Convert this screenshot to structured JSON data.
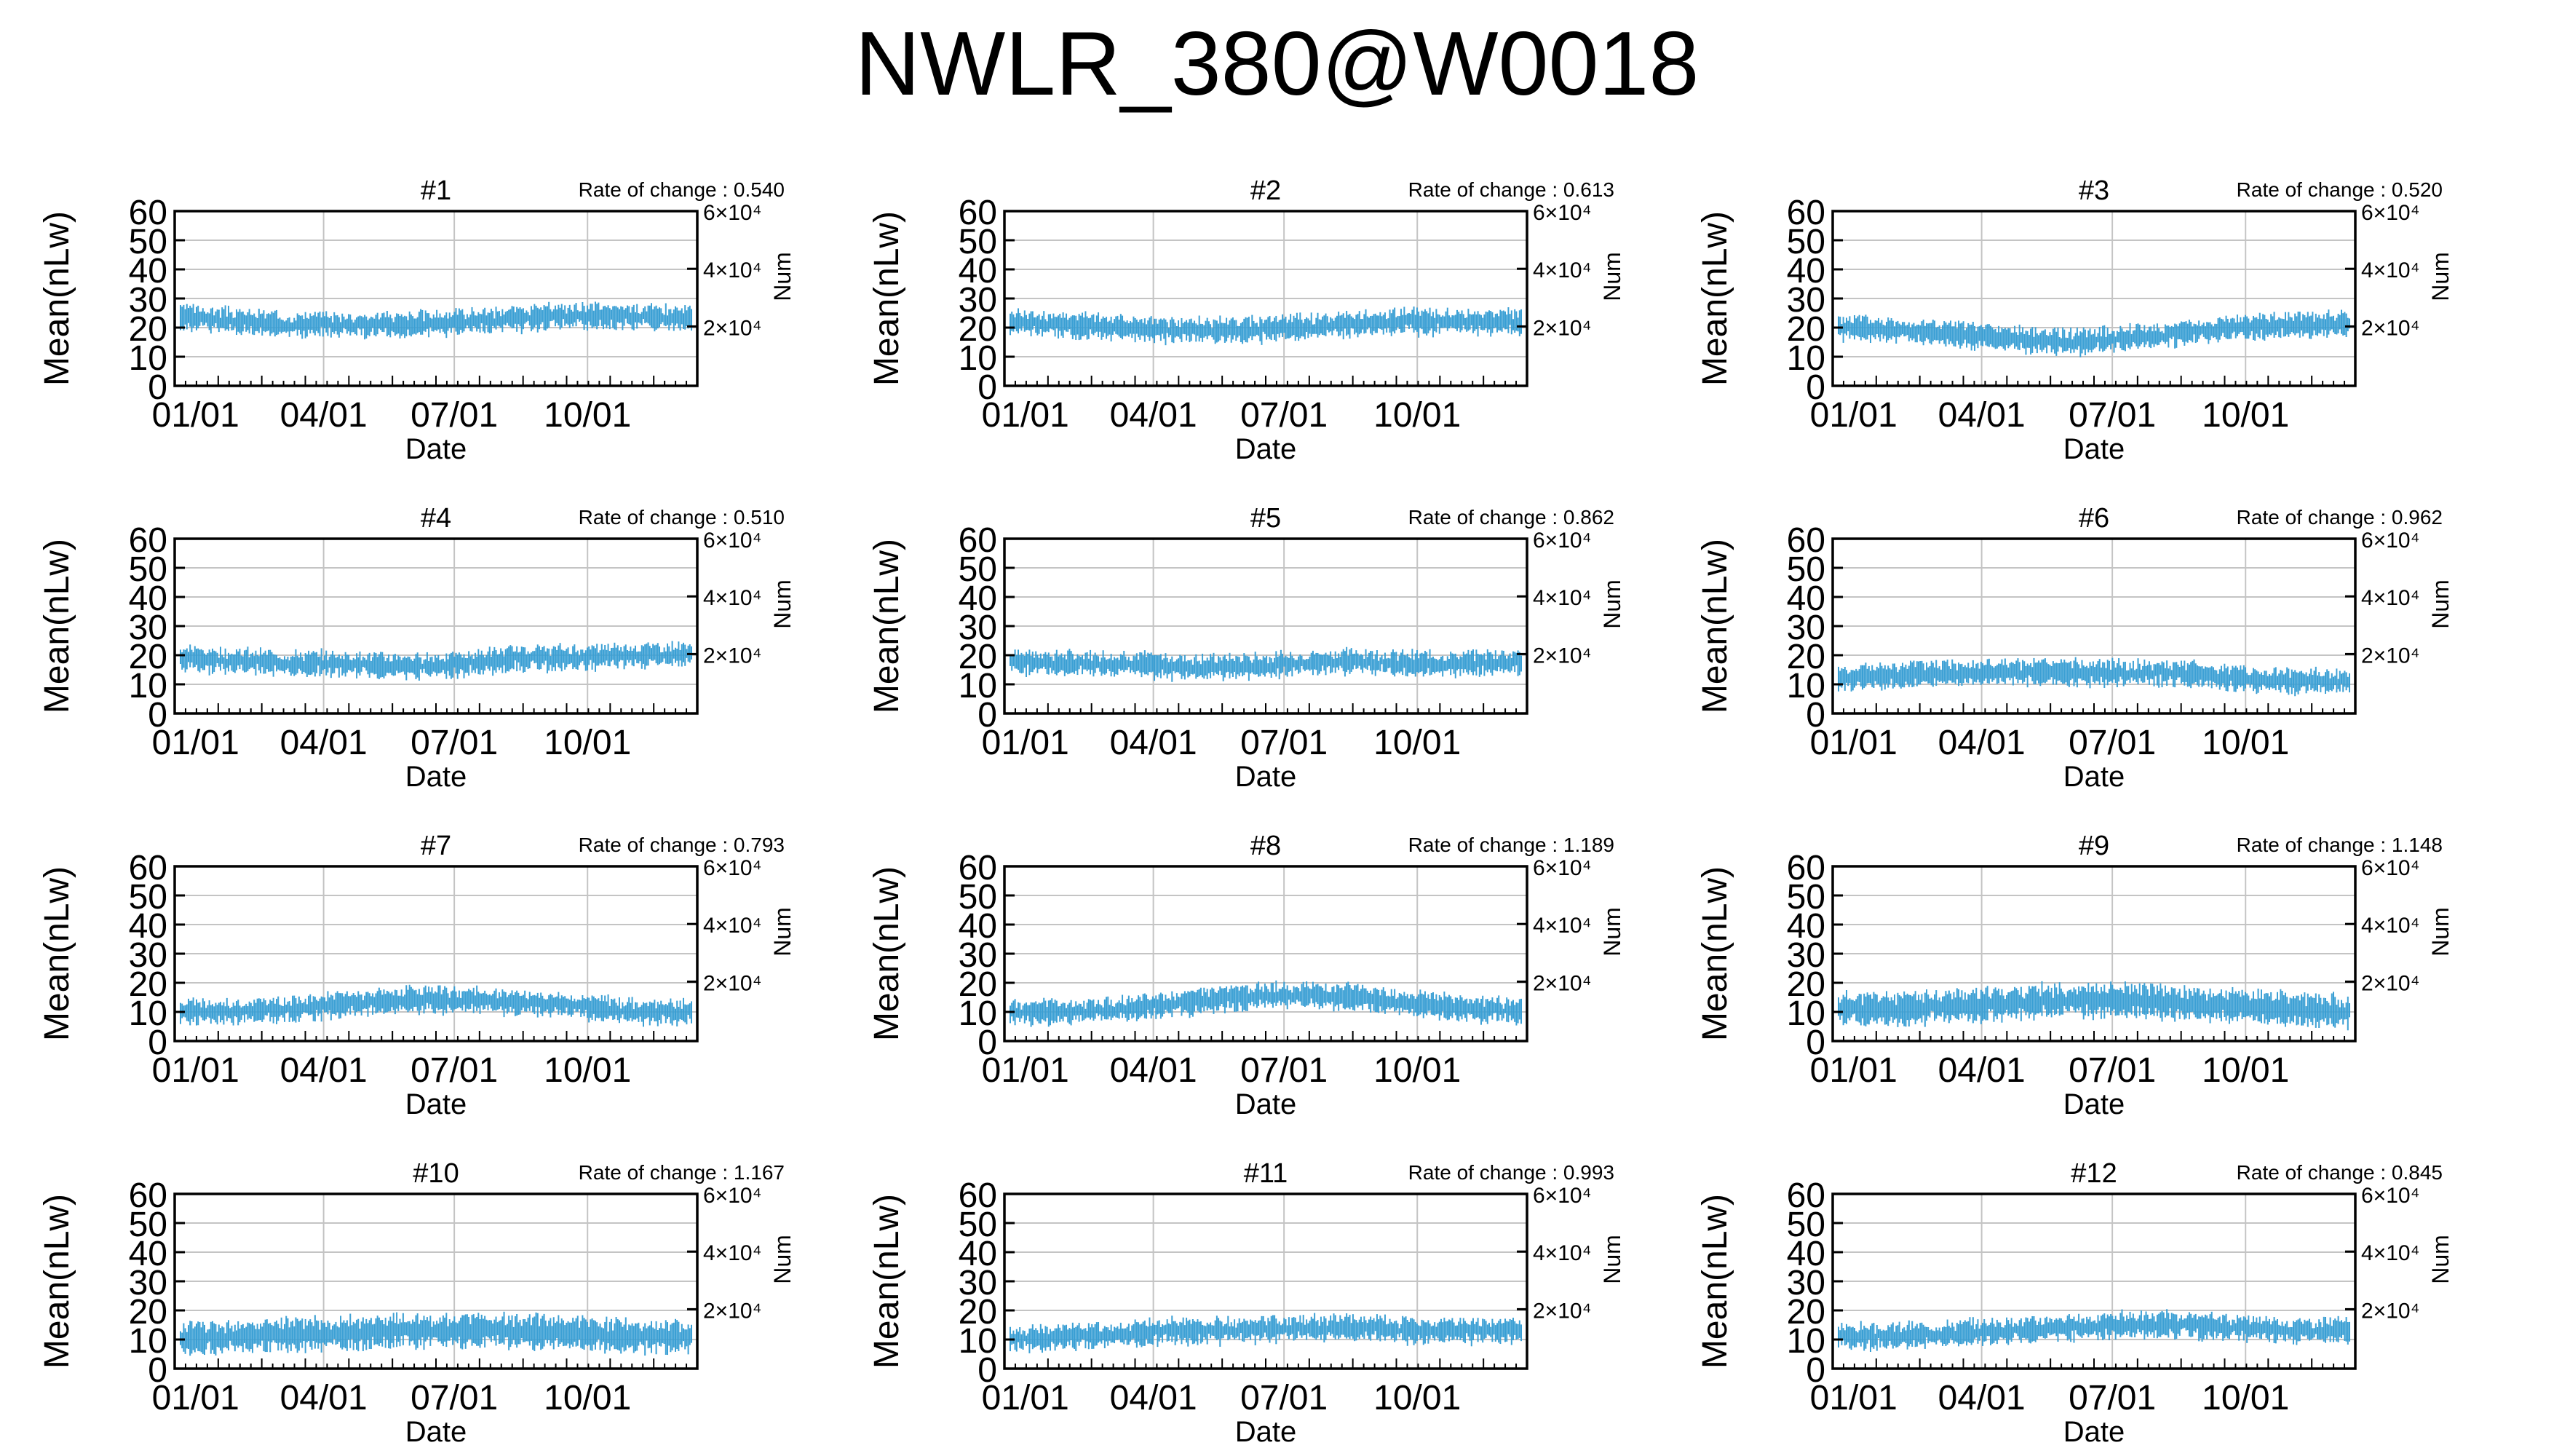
{
  "title": "NWLR_380@W0018",
  "colors": {
    "series": "#3a9fd4",
    "grid": "#c4c4c4",
    "axis": "#000000"
  },
  "chart_data": [
    {
      "type": "line",
      "title": "#1",
      "rate_label": "Rate of change : 0.540",
      "xlabel": "Date",
      "ylabel": "Mean(nLw)",
      "y2label": "Num",
      "ylim": [
        0,
        60
      ],
      "yticks": [
        "0",
        "10",
        "20",
        "30",
        "40",
        "50",
        "60"
      ],
      "y2ticks": [
        "2×10⁴",
        "4×10⁴",
        "6×10⁴"
      ],
      "xticks": [
        "01/01",
        "04/01",
        "07/01",
        "10/01"
      ],
      "grid": true,
      "series": [
        {
          "baseline": [
            24,
            22,
            21,
            21,
            21,
            22,
            23,
            24,
            24,
            23
          ],
          "spread": 3
        }
      ]
    },
    {
      "type": "line",
      "title": "#2",
      "rate_label": "Rate of change : 0.613",
      "xlabel": "Date",
      "ylabel": "Mean(nLw)",
      "y2label": "Num",
      "ylim": [
        0,
        60
      ],
      "yticks": [
        "0",
        "10",
        "20",
        "30",
        "40",
        "50",
        "60"
      ],
      "y2ticks": [
        "2×10⁴",
        "4×10⁴",
        "6×10⁴"
      ],
      "xticks": [
        "01/01",
        "04/01",
        "07/01",
        "10/01"
      ],
      "grid": true,
      "series": [
        {
          "baseline": [
            22,
            21,
            20,
            19,
            19,
            20,
            21,
            22,
            22,
            22
          ],
          "spread": 3
        }
      ]
    },
    {
      "type": "line",
      "title": "#3",
      "rate_label": "Rate of change : 0.520",
      "xlabel": "Date",
      "ylabel": "Mean(nLw)",
      "y2label": "Num",
      "ylim": [
        0,
        60
      ],
      "yticks": [
        "0",
        "10",
        "20",
        "30",
        "40",
        "50",
        "60"
      ],
      "y2ticks": [
        "2×10⁴",
        "4×10⁴",
        "6×10⁴"
      ],
      "xticks": [
        "01/01",
        "04/01",
        "07/01",
        "10/01"
      ],
      "grid": true,
      "series": [
        {
          "baseline": [
            20,
            19,
            18,
            16,
            15,
            16,
            18,
            20,
            21,
            21
          ],
          "spread": 3
        }
      ]
    },
    {
      "type": "line",
      "title": "#4",
      "rate_label": "Rate of change : 0.510",
      "xlabel": "Date",
      "ylabel": "Mean(nLw)",
      "y2label": "Num",
      "ylim": [
        0,
        60
      ],
      "yticks": [
        "0",
        "10",
        "20",
        "30",
        "40",
        "50",
        "60"
      ],
      "y2ticks": [
        "2×10⁴",
        "4×10⁴",
        "6×10⁴"
      ],
      "xticks": [
        "01/01",
        "04/01",
        "07/01",
        "10/01"
      ],
      "grid": true,
      "series": [
        {
          "baseline": [
            19,
            18,
            17,
            17,
            16,
            17,
            19,
            19,
            20,
            20
          ],
          "spread": 3
        }
      ]
    },
    {
      "type": "line",
      "title": "#5",
      "rate_label": "Rate of change : 0.862",
      "xlabel": "Date",
      "ylabel": "Mean(nLw)",
      "y2label": "Num",
      "ylim": [
        0,
        60
      ],
      "yticks": [
        "0",
        "10",
        "20",
        "30",
        "40",
        "50",
        "60"
      ],
      "y2ticks": [
        "2×10⁴",
        "4×10⁴",
        "6×10⁴"
      ],
      "xticks": [
        "01/01",
        "04/01",
        "07/01",
        "10/01"
      ],
      "grid": true,
      "series": [
        {
          "baseline": [
            18,
            17,
            17,
            16,
            16,
            17,
            18,
            17,
            17,
            18
          ],
          "spread": 3
        }
      ]
    },
    {
      "type": "line",
      "title": "#6",
      "rate_label": "Rate of change : 0.962",
      "xlabel": "Date",
      "ylabel": "Mean(nLw)",
      "y2label": "Num",
      "ylim": [
        0,
        60
      ],
      "yticks": [
        "0",
        "10",
        "20",
        "30",
        "40",
        "50",
        "60"
      ],
      "y2ticks": [
        "2×10⁴",
        "4×10⁴",
        "6×10⁴"
      ],
      "xticks": [
        "01/01",
        "04/01",
        "07/01",
        "10/01"
      ],
      "grid": true,
      "series": [
        {
          "baseline": [
            12,
            13,
            14,
            14,
            14,
            14,
            14,
            12,
            11,
            11
          ],
          "spread": 3
        }
      ]
    },
    {
      "type": "line",
      "title": "#7",
      "rate_label": "Rate of change : 0.793",
      "xlabel": "Date",
      "ylabel": "Mean(nLw)",
      "y2label": "Num",
      "ylim": [
        0,
        60
      ],
      "yticks": [
        "0",
        "10",
        "20",
        "30",
        "40",
        "50",
        "60"
      ],
      "y2ticks": [
        "2×10⁴",
        "4×10⁴",
        "6×10⁴"
      ],
      "xticks": [
        "01/01",
        "04/01",
        "07/01",
        "10/01"
      ],
      "grid": true,
      "series": [
        {
          "baseline": [
            10,
            10,
            11,
            13,
            14,
            14,
            13,
            12,
            10,
            10
          ],
          "spread": 3
        }
      ]
    },
    {
      "type": "line",
      "title": "#8",
      "rate_label": "Rate of change : 1.189",
      "xlabel": "Date",
      "ylabel": "Mean(nLw)",
      "y2label": "Num",
      "ylim": [
        0,
        60
      ],
      "yticks": [
        "0",
        "10",
        "20",
        "30",
        "40",
        "50",
        "60"
      ],
      "y2ticks": [
        "2×10⁴",
        "4×10⁴",
        "6×10⁴"
      ],
      "xticks": [
        "01/01",
        "04/01",
        "07/01",
        "10/01"
      ],
      "grid": true,
      "series": [
        {
          "baseline": [
            10,
            10,
            11,
            13,
            15,
            16,
            15,
            13,
            11,
            10
          ],
          "spread": 3
        }
      ]
    },
    {
      "type": "line",
      "title": "#9",
      "rate_label": "Rate of change : 1.148",
      "xlabel": "Date",
      "ylabel": "Mean(nLw)",
      "y2label": "Num",
      "ylim": [
        0,
        60
      ],
      "yticks": [
        "0",
        "10",
        "20",
        "30",
        "40",
        "50",
        "60"
      ],
      "y2ticks": [
        "2×10⁴",
        "4×10⁴",
        "6×10⁴"
      ],
      "xticks": [
        "01/01",
        "04/01",
        "07/01",
        "10/01"
      ],
      "grid": true,
      "series": [
        {
          "baseline": [
            11,
            11,
            12,
            13,
            14,
            14,
            13,
            12,
            11,
            10
          ],
          "spread": 4
        }
      ]
    },
    {
      "type": "line",
      "title": "#10",
      "rate_label": "Rate of change : 1.167",
      "xlabel": "Date",
      "ylabel": "Mean(nLw)",
      "y2label": "Num",
      "ylim": [
        0,
        60
      ],
      "yticks": [
        "0",
        "10",
        "20",
        "30",
        "40",
        "50",
        "60"
      ],
      "y2ticks": [
        "2×10⁴",
        "4×10⁴",
        "6×10⁴"
      ],
      "xticks": [
        "01/01",
        "04/01",
        "07/01",
        "10/01"
      ],
      "grid": true,
      "series": [
        {
          "baseline": [
            10,
            11,
            12,
            12,
            13,
            13,
            13,
            12,
            11,
            11
          ],
          "spread": 4
        }
      ]
    },
    {
      "type": "line",
      "title": "#11",
      "rate_label": "Rate of change : 0.993",
      "xlabel": "Date",
      "ylabel": "Mean(nLw)",
      "y2label": "Num",
      "ylim": [
        0,
        60
      ],
      "yticks": [
        "0",
        "10",
        "20",
        "30",
        "40",
        "50",
        "60"
      ],
      "y2ticks": [
        "2×10⁴",
        "4×10⁴",
        "6×10⁴"
      ],
      "xticks": [
        "01/01",
        "04/01",
        "07/01",
        "10/01"
      ],
      "grid": true,
      "series": [
        {
          "baseline": [
            10,
            11,
            12,
            13,
            13,
            14,
            14,
            13,
            13,
            13
          ],
          "spread": 3
        }
      ]
    },
    {
      "type": "line",
      "title": "#12",
      "rate_label": "Rate of change : 0.845",
      "xlabel": "Date",
      "ylabel": "Mean(nLw)",
      "y2label": "Num",
      "ylim": [
        0,
        60
      ],
      "yticks": [
        "0",
        "10",
        "20",
        "30",
        "40",
        "50",
        "60"
      ],
      "y2ticks": [
        "2×10⁴",
        "4×10⁴",
        "6×10⁴"
      ],
      "xticks": [
        "01/01",
        "04/01",
        "07/01",
        "10/01"
      ],
      "grid": true,
      "series": [
        {
          "baseline": [
            11,
            11,
            12,
            13,
            14,
            15,
            15,
            14,
            13,
            13
          ],
          "spread": 3
        }
      ]
    }
  ]
}
